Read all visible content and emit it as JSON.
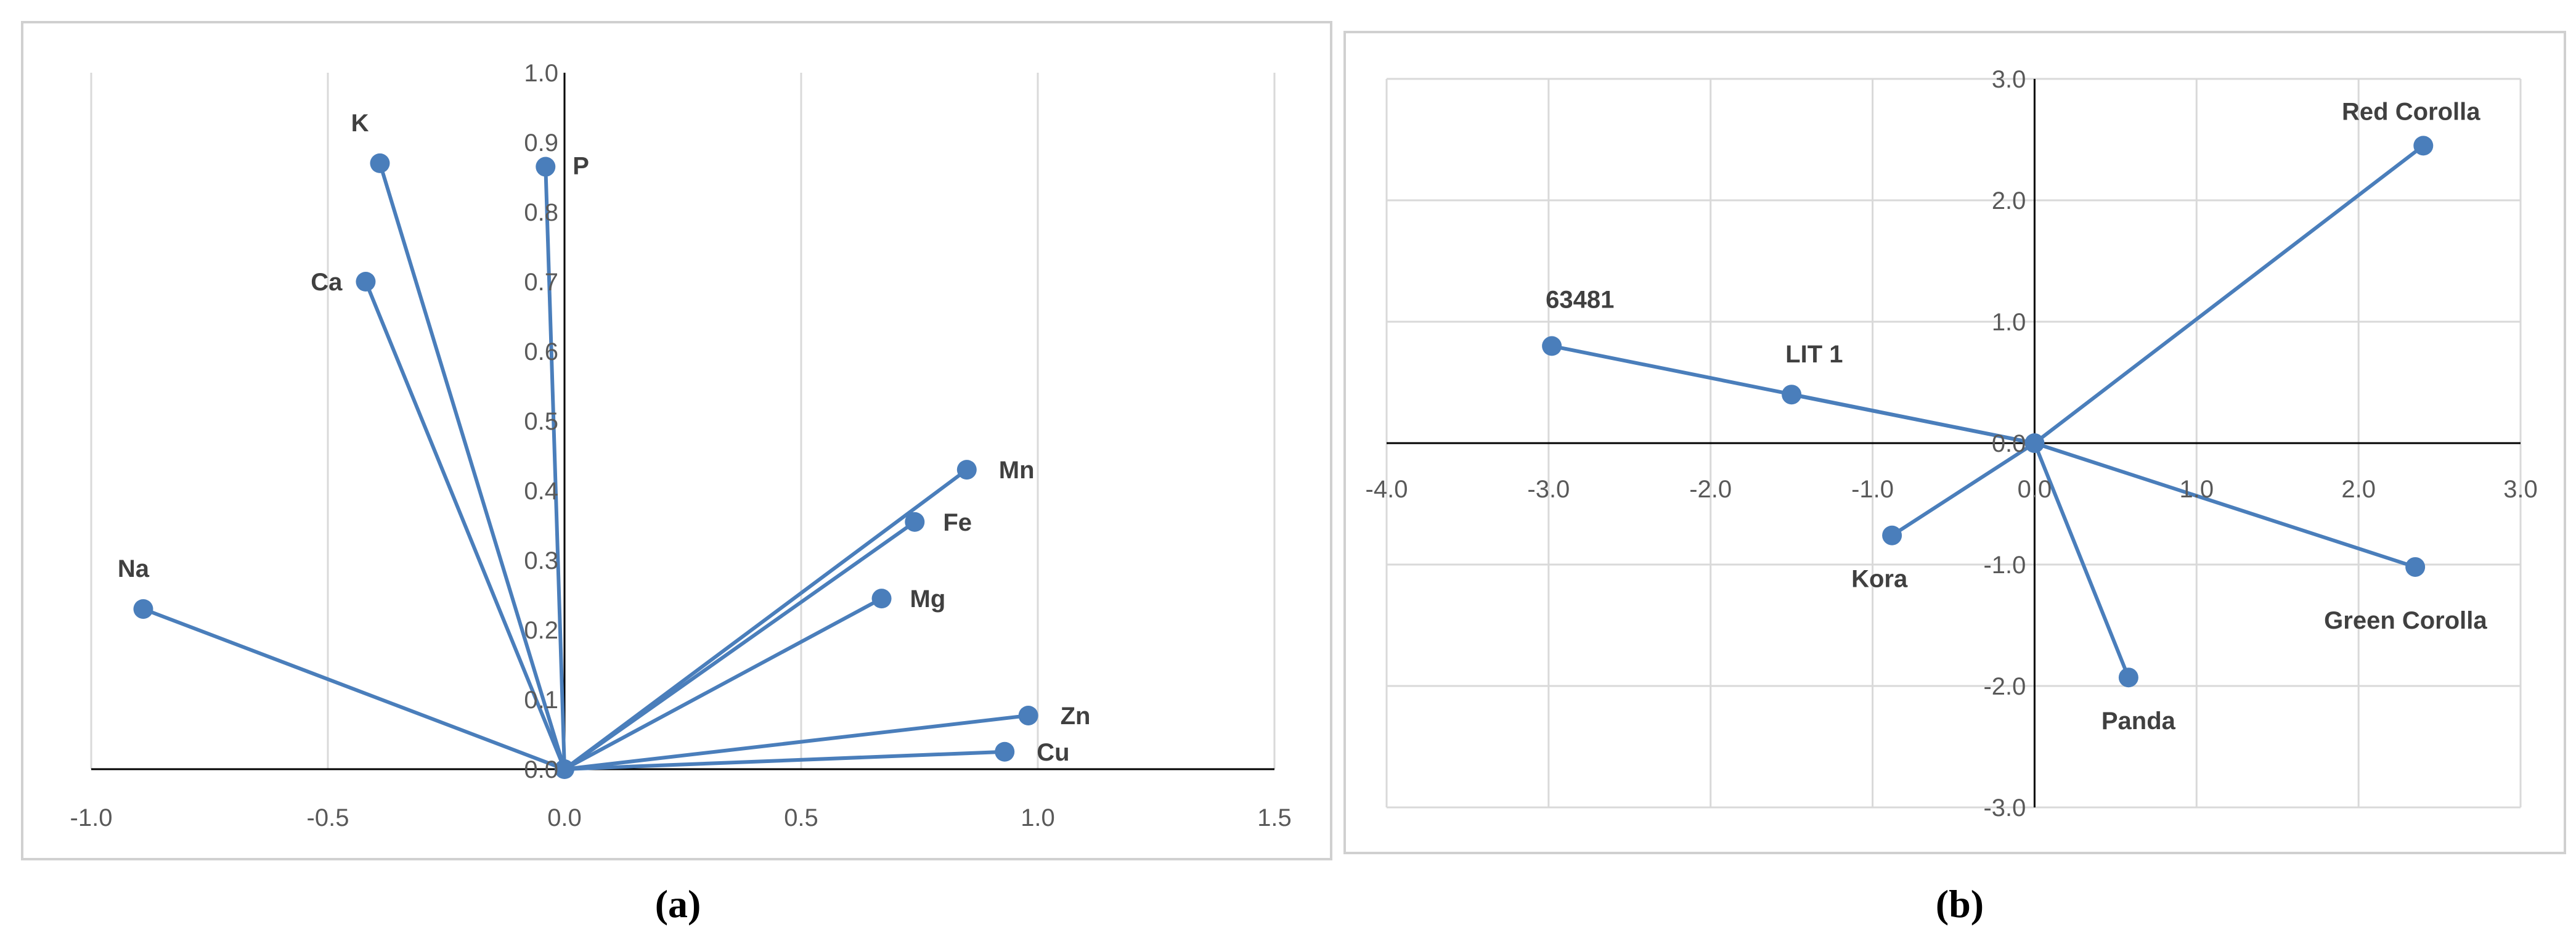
{
  "colors": {
    "series": "#4a7ebb",
    "grid": "#d9d9d9",
    "axis": "#000000",
    "frame": "#d0d0d0"
  },
  "chart_data": [
    {
      "type": "scatter",
      "panel": "a",
      "caption": "(a)",
      "title": "",
      "xlabel": "",
      "ylabel": "",
      "xlim": [
        -1.0,
        1.5
      ],
      "ylim": [
        0.0,
        1.0
      ],
      "xticks": [
        "-1.0",
        "-0.5",
        "0.0",
        "0.5",
        "1.0",
        "1.5"
      ],
      "yticks": [
        "0.0",
        "0.1",
        "0.2",
        "0.3",
        "0.4",
        "0.5",
        "0.6",
        "0.7",
        "0.8",
        "0.9",
        "1.0"
      ],
      "grid": "vertical",
      "vectors_from_origin": true,
      "points": [
        {
          "label": "K",
          "x": -0.39,
          "y": 0.87
        },
        {
          "label": "P",
          "x": -0.04,
          "y": 0.865
        },
        {
          "label": "Ca",
          "x": -0.42,
          "y": 0.7
        },
        {
          "label": "Na",
          "x": -0.89,
          "y": 0.23
        },
        {
          "label": "Mn",
          "x": 0.85,
          "y": 0.43
        },
        {
          "label": "Fe",
          "x": 0.74,
          "y": 0.355
        },
        {
          "label": "Mg",
          "x": 0.67,
          "y": 0.245
        },
        {
          "label": "Zn",
          "x": 0.98,
          "y": 0.077
        },
        {
          "label": "Cu",
          "x": 0.93,
          "y": 0.025
        }
      ]
    },
    {
      "type": "scatter",
      "panel": "b",
      "caption": "(b)",
      "title": "",
      "xlabel": "",
      "ylabel": "",
      "xlim": [
        -4.0,
        3.0
      ],
      "ylim": [
        -3.0,
        3.0
      ],
      "xticks": [
        "-4.0",
        "-3.0",
        "-2.0",
        "-1.0",
        "0.0",
        "1.0",
        "2.0",
        "3.0"
      ],
      "yticks": [
        "-3.0",
        "-2.0",
        "-1.0",
        "0.0",
        "1.0",
        "2.0",
        "3.0"
      ],
      "grid": "both",
      "vectors_from_origin": true,
      "points": [
        {
          "label": "Red Corolla",
          "x": 2.4,
          "y": 2.45
        },
        {
          "label": "63481",
          "x": -2.98,
          "y": 0.8
        },
        {
          "label": "LIT 1",
          "x": -1.5,
          "y": 0.4
        },
        {
          "label": "Kora",
          "x": -0.88,
          "y": -0.76
        },
        {
          "label": "Green Corolla",
          "x": 2.35,
          "y": -1.02
        },
        {
          "label": "Panda",
          "x": 0.58,
          "y": -1.93
        }
      ]
    }
  ]
}
